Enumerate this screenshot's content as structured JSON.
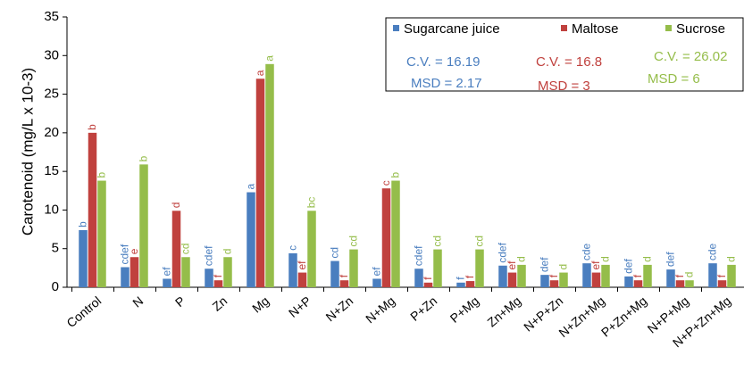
{
  "chart_data": {
    "type": "bar",
    "ylabel": "Carotenoid (mg/L x 10-3)",
    "categories": [
      "Control",
      "N",
      "P",
      "Zn",
      "Mg",
      "N+P",
      "N+Zn",
      "N+Mg",
      "P+Zn",
      "P+Mg",
      "Zn+Mg",
      "N+P+Zn",
      "N+Zn+Mg",
      "P+Zn+Mg",
      "N+P+Mg",
      "N+P+Zn+Mg"
    ],
    "series": [
      {
        "name": "Sugarcane juice",
        "color": "#4a7ebf",
        "cv": "C.V. = 16.19",
        "msd": "MSD = 2.17",
        "values": [
          7.4,
          2.6,
          1.1,
          2.4,
          12.3,
          4.4,
          3.4,
          1.1,
          2.4,
          0.6,
          2.8,
          1.6,
          3.1,
          1.4,
          2.3,
          3.1
        ],
        "letters": [
          "b",
          "cdef",
          "ef",
          "cdef",
          "a",
          "c",
          "cd",
          "ef",
          "cdef",
          "f",
          "cdef",
          "def",
          "cde",
          "def",
          "def",
          "cde"
        ]
      },
      {
        "name": "Maltose",
        "color": "#c0413e",
        "cv": "C.V. = 16.8",
        "msd": "MSD = 3",
        "values": [
          20,
          3.9,
          9.9,
          0.9,
          27,
          1.9,
          0.9,
          12.8,
          0.6,
          0.8,
          1.9,
          0.9,
          1.9,
          0.9,
          0.9,
          0.9
        ],
        "letters": [
          "b",
          "e",
          "d",
          "f",
          "a",
          "ef",
          "f",
          "c",
          "f",
          "f",
          "ef",
          "f",
          "ef",
          "f",
          "f",
          "f"
        ]
      },
      {
        "name": "Sucrose",
        "color": "#95bd4a",
        "cv": "C.V. = 26.02",
        "msd": "MSD = 6",
        "values": [
          13.8,
          15.9,
          3.9,
          3.9,
          28.9,
          9.9,
          4.9,
          13.8,
          4.9,
          4.9,
          2.9,
          1.9,
          2.9,
          2.9,
          0.9,
          2.9
        ],
        "letters": [
          "b",
          "b",
          "cd",
          "d",
          "a",
          "bc",
          "cd",
          "b",
          "cd",
          "cd",
          "d",
          "d",
          "d",
          "d",
          "d",
          "d"
        ]
      }
    ],
    "ylim": [
      0,
      35
    ],
    "yticks": [
      0,
      5,
      10,
      15,
      20,
      25,
      30,
      35
    ]
  }
}
